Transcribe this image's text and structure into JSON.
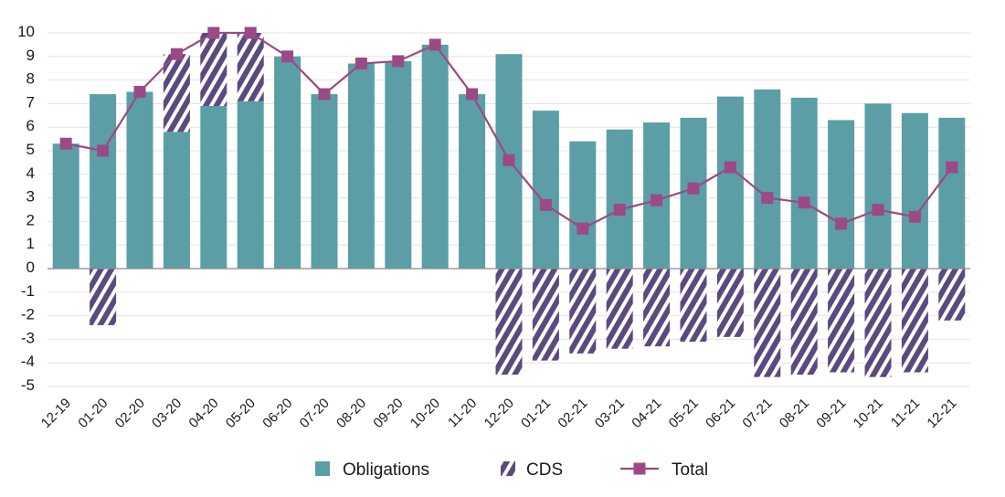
{
  "chart_data": {
    "type": "bar",
    "categories": [
      "12-19",
      "01-20",
      "02-20",
      "03-20",
      "04-20",
      "05-20",
      "06-20",
      "07-20",
      "08-20",
      "09-20",
      "10-20",
      "11-20",
      "12-20",
      "01-21",
      "02-21",
      "03-21",
      "04-21",
      "05-21",
      "06-21",
      "07-21",
      "08-21",
      "09-21",
      "10-21",
      "11-21",
      "12-21"
    ],
    "series": [
      {
        "name": "Obligations",
        "kind": "bar",
        "color": "#5b9ea6",
        "values": [
          5.3,
          7.4,
          7.5,
          5.8,
          6.9,
          7.1,
          9.0,
          7.4,
          8.7,
          8.8,
          9.5,
          7.4,
          9.1,
          6.7,
          5.4,
          5.9,
          6.2,
          6.4,
          7.3,
          7.6,
          7.25,
          6.3,
          7.0,
          6.6,
          6.4
        ]
      },
      {
        "name": "CDS",
        "kind": "bar-hatched",
        "color": "#5b4a7e",
        "values": [
          0,
          -2.4,
          0,
          3.3,
          3.1,
          2.9,
          0,
          0,
          0,
          0,
          0,
          0,
          -4.5,
          -3.9,
          -3.6,
          -3.4,
          -3.3,
          -3.1,
          -2.9,
          -4.6,
          -4.5,
          -4.4,
          -4.6,
          -4.4,
          -2.2
        ]
      },
      {
        "name": "Total",
        "kind": "line",
        "color": "#9b4a86",
        "values": [
          5.3,
          5.0,
          7.5,
          9.1,
          10.0,
          10.0,
          9.0,
          7.4,
          8.7,
          8.8,
          9.5,
          7.4,
          4.6,
          2.7,
          1.7,
          2.5,
          2.9,
          3.4,
          4.3,
          3.0,
          2.8,
          1.9,
          2.5,
          2.2,
          4.3
        ]
      }
    ],
    "ylim": [
      -5,
      10
    ],
    "yticks": [
      10,
      9,
      8,
      7,
      6,
      5,
      4,
      3,
      2,
      1,
      0,
      -1,
      -2,
      -3,
      -4,
      -5
    ],
    "grid": true,
    "legend_position": "bottom"
  }
}
